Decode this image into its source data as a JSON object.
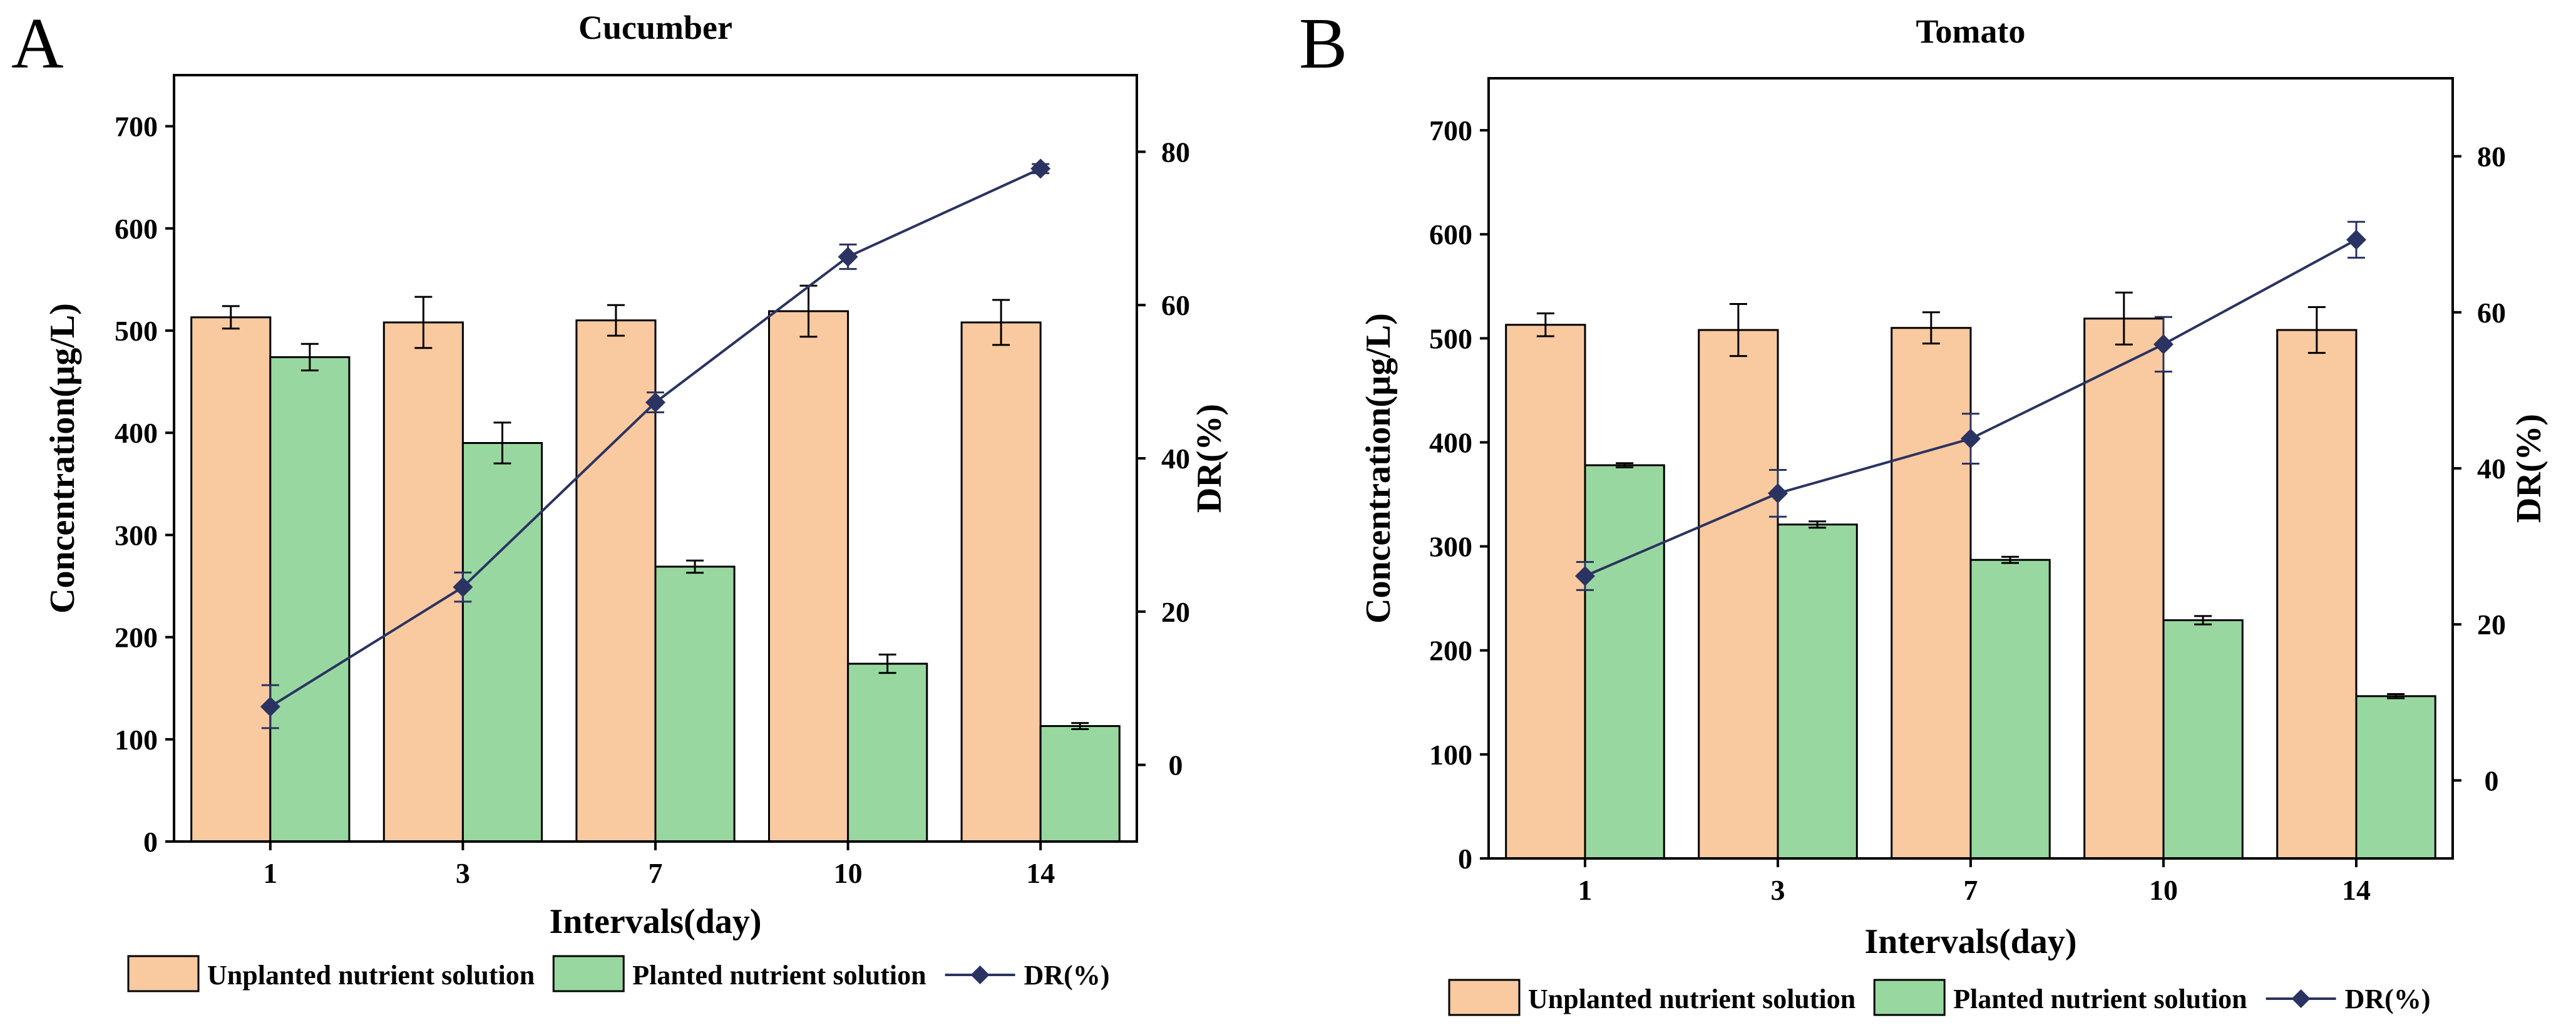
{
  "chart_data": [
    {
      "panel": "A",
      "type": "bar",
      "title": "Cucumber",
      "xlabel": "Intervals(day)",
      "ylabel": "Concentration(µg/L)",
      "y2label": "DR(%)",
      "categories": [
        "1",
        "3",
        "7",
        "10",
        "14"
      ],
      "ylim": [
        0,
        750
      ],
      "yticks": [
        0,
        100,
        200,
        300,
        400,
        500,
        600,
        700
      ],
      "y2lim": [
        -10,
        90
      ],
      "y2ticks": [
        0,
        20,
        40,
        60,
        80
      ],
      "series": [
        {
          "name": "Unplanted nutrient solution",
          "kind": "bar",
          "axis": "left",
          "color": "#f9c99f",
          "values": [
            513,
            508,
            510,
            519,
            508
          ],
          "errors": [
            11,
            25,
            15,
            25,
            22
          ]
        },
        {
          "name": "Planted nutrient solution",
          "kind": "bar",
          "axis": "left",
          "color": "#98d8a0",
          "values": [
            474,
            390,
            269,
            174,
            113
          ],
          "errors": [
            13,
            20,
            6,
            9,
            3
          ]
        },
        {
          "name": "DR(%)",
          "kind": "line",
          "axis": "right",
          "color": "#2a3361",
          "values": [
            7.6,
            23.2,
            47.3,
            66.3,
            77.8
          ],
          "errors": [
            2.8,
            1.9,
            1.3,
            1.6,
            0.6
          ]
        }
      ],
      "legend_position": "bottom"
    },
    {
      "panel": "B",
      "type": "bar",
      "title": "Tomato",
      "xlabel": "Intervals(day)",
      "ylabel": "Concentration(µg/L)",
      "y2label": "DR(%)",
      "categories": [
        "1",
        "3",
        "7",
        "10",
        "14"
      ],
      "ylim": [
        0,
        750
      ],
      "yticks": [
        0,
        100,
        200,
        300,
        400,
        500,
        600,
        700
      ],
      "y2lim": [
        -10,
        90
      ],
      "y2ticks": [
        0,
        20,
        40,
        60,
        80
      ],
      "series": [
        {
          "name": "Unplanted nutrient solution",
          "kind": "bar",
          "axis": "left",
          "color": "#f9c99f",
          "values": [
            513,
            508,
            510,
            519,
            508
          ],
          "errors": [
            11,
            25,
            15,
            25,
            22
          ]
        },
        {
          "name": "Planted nutrient solution",
          "kind": "bar",
          "axis": "left",
          "color": "#98d8a0",
          "values": [
            378,
            321,
            287,
            229,
            156
          ],
          "errors": [
            2,
            3,
            3,
            4,
            2
          ]
        },
        {
          "name": "DR(%)",
          "kind": "line",
          "axis": "right",
          "color": "#2a3361",
          "values": [
            26.2,
            36.8,
            43.8,
            55.9,
            69.3
          ],
          "errors": [
            1.8,
            3.0,
            3.2,
            3.5,
            2.3
          ]
        }
      ],
      "legend_position": "bottom"
    }
  ]
}
